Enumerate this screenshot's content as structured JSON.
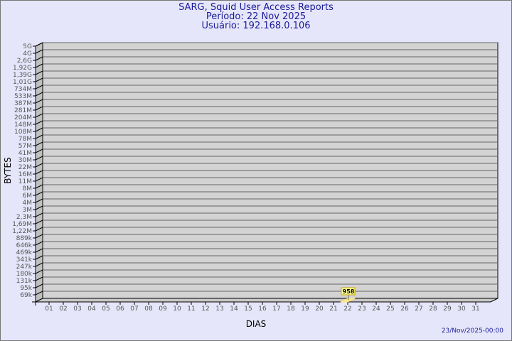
{
  "header": {
    "title": "SARG, Squid User Access Reports",
    "period": "Período: 22 Nov 2025",
    "user": "Usuário: 192.168.0.106"
  },
  "footer": {
    "timestamp": "23/Nov/2025-00:00"
  },
  "colors": {
    "background": "#e6e6fa",
    "plot": "#d3d3d3",
    "title": "#1a1a9a",
    "bar": "#ffe680"
  },
  "chart_data": {
    "type": "bar",
    "xlabel": "DIAS",
    "ylabel": "BYTES",
    "y_scale": "log",
    "y_ticks": [
      "69k",
      "95k",
      "131k",
      "180k",
      "247k",
      "341k",
      "469k",
      "646k",
      "889k",
      "1,22M",
      "1,69M",
      "2,3M",
      "3M",
      "4M",
      "6M",
      "8M",
      "11M",
      "16M",
      "22M",
      "30M",
      "41M",
      "57M",
      "78M",
      "108M",
      "148M",
      "204M",
      "281M",
      "387M",
      "533M",
      "734M",
      "1,01G",
      "1,39G",
      "1,92G",
      "2,6G",
      "4G",
      "5G"
    ],
    "categories": [
      "01",
      "02",
      "03",
      "04",
      "05",
      "06",
      "07",
      "08",
      "09",
      "10",
      "11",
      "12",
      "13",
      "14",
      "15",
      "16",
      "17",
      "18",
      "19",
      "20",
      "21",
      "22",
      "23",
      "24",
      "25",
      "26",
      "27",
      "28",
      "29",
      "30",
      "31"
    ],
    "values": [
      0,
      0,
      0,
      0,
      0,
      0,
      0,
      0,
      0,
      0,
      0,
      0,
      0,
      0,
      0,
      0,
      0,
      0,
      0,
      0,
      0,
      958,
      0,
      0,
      0,
      0,
      0,
      0,
      0,
      0,
      0
    ],
    "data_labels": [
      {
        "category": "22",
        "label": "958"
      }
    ]
  }
}
